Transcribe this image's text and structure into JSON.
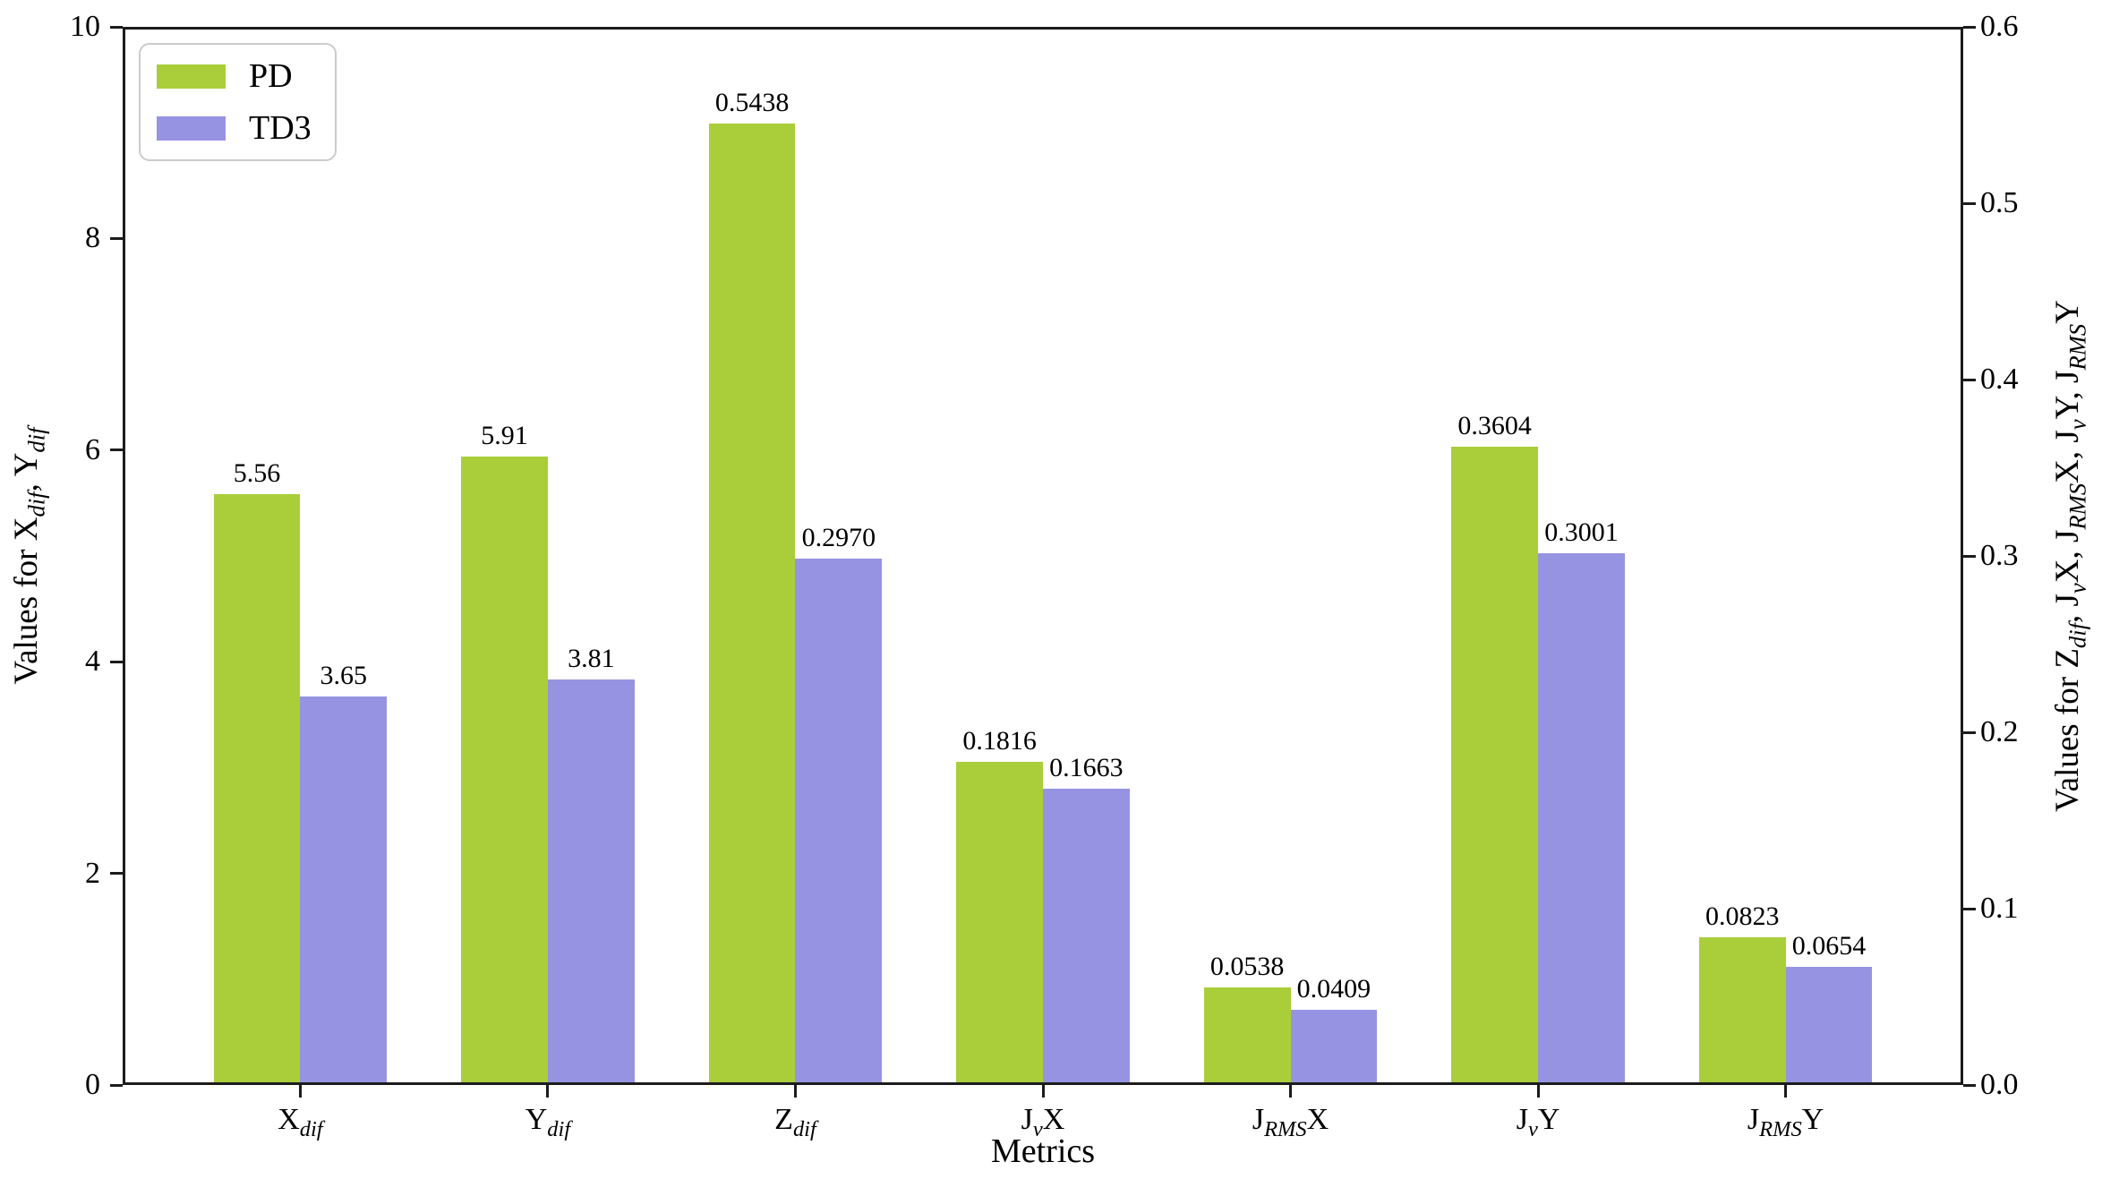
{
  "chart_data": {
    "type": "bar",
    "title": "",
    "xlabel": "Metrics",
    "categories": [
      "X_{dif}",
      "Y_{dif}",
      "Z_{dif}",
      "J_{v}X",
      "J_{RMS}X",
      "J_{v}Y",
      "J_{RMS}Y"
    ],
    "category_axis": [
      "left",
      "left",
      "right",
      "right",
      "right",
      "right",
      "right"
    ],
    "series": [
      {
        "name": "PD",
        "color": "#a9ce3a",
        "values": [
          5.56,
          5.91,
          0.5438,
          0.1816,
          0.0538,
          0.3604,
          0.0823
        ],
        "value_labels": [
          "5.56",
          "5.91",
          "0.5438",
          "0.1816",
          "0.0538",
          "0.3604",
          "0.0823"
        ]
      },
      {
        "name": "TD3",
        "color": "#9694e2",
        "values": [
          3.65,
          3.81,
          0.297,
          0.1663,
          0.0409,
          0.3001,
          0.0654
        ],
        "value_labels": [
          "3.65",
          "3.81",
          "0.2970",
          "0.1663",
          "0.0409",
          "0.3001",
          "0.0654"
        ]
      }
    ],
    "left_axis": {
      "label": "Values for X_{dif}, Y_{dif}",
      "min": 0,
      "max": 10,
      "ticks": [
        "0",
        "2",
        "4",
        "6",
        "8",
        "10"
      ]
    },
    "right_axis": {
      "label": "Values for Z_{dif}, J_{v}X, J_{RMS}X, J_{v}Y, J_{RMS}Y",
      "min": 0,
      "max": 0.6,
      "ticks": [
        "0.0",
        "0.1",
        "0.2",
        "0.3",
        "0.4",
        "0.5",
        "0.6"
      ]
    },
    "legend": {
      "position": "upper-left",
      "entries": [
        "PD",
        "TD3"
      ]
    },
    "grid": false,
    "bar_width_fraction": 0.35
  }
}
